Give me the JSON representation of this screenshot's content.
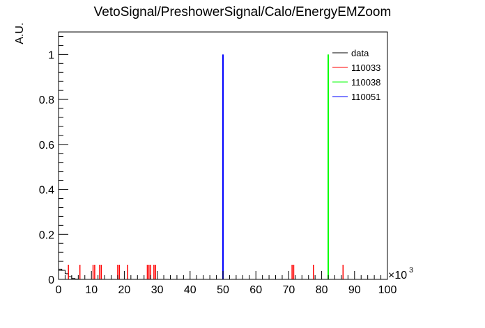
{
  "chart_data": {
    "type": "bar",
    "title": "VetoSignal/PreshowerSignal/Calo/EnergyEMZoom",
    "xlabel": "",
    "ylabel": "A.U.",
    "xlim": [
      0,
      100000
    ],
    "ylim": [
      0,
      1.1
    ],
    "x_multiplier_base": "×10",
    "x_multiplier_exp": "3",
    "x_tick_labels": [
      "0",
      "10",
      "20",
      "30",
      "40",
      "50",
      "60",
      "70",
      "80",
      "90",
      "100"
    ],
    "y_tick_labels": [
      "0",
      "0.2",
      "0.4",
      "0.6",
      "0.8",
      "1"
    ],
    "legend_position": "top-right",
    "bin_width": 1000,
    "series": [
      {
        "name": "data",
        "color": "#000000",
        "style": "step",
        "x": [
          0,
          1000,
          2000,
          3000,
          4000,
          5000,
          6000
        ],
        "values": [
          0.045,
          0.04,
          0.025,
          0.012,
          0.004,
          0.001,
          0
        ]
      },
      {
        "name": "110033",
        "color": "#ff0000",
        "style": "spikes",
        "x": [
          3000,
          6500,
          10500,
          11000,
          12500,
          13000,
          18000,
          18500,
          21000,
          27000,
          27500,
          28000,
          29000,
          29500,
          71000,
          71500,
          77500,
          86500
        ],
        "values": [
          0.065,
          0.065,
          0.065,
          0.065,
          0.065,
          0.065,
          0.065,
          0.065,
          0.065,
          0.065,
          0.065,
          0.065,
          0.065,
          0.065,
          0.065,
          0.065,
          0.065,
          0.065
        ]
      },
      {
        "name": "110038",
        "color": "#00ff00",
        "style": "spikes",
        "x": [
          82000
        ],
        "values": [
          1.0
        ]
      },
      {
        "name": "110051",
        "color": "#0000ff",
        "style": "spikes",
        "x": [
          50000
        ],
        "values": [
          1.0
        ]
      }
    ]
  }
}
